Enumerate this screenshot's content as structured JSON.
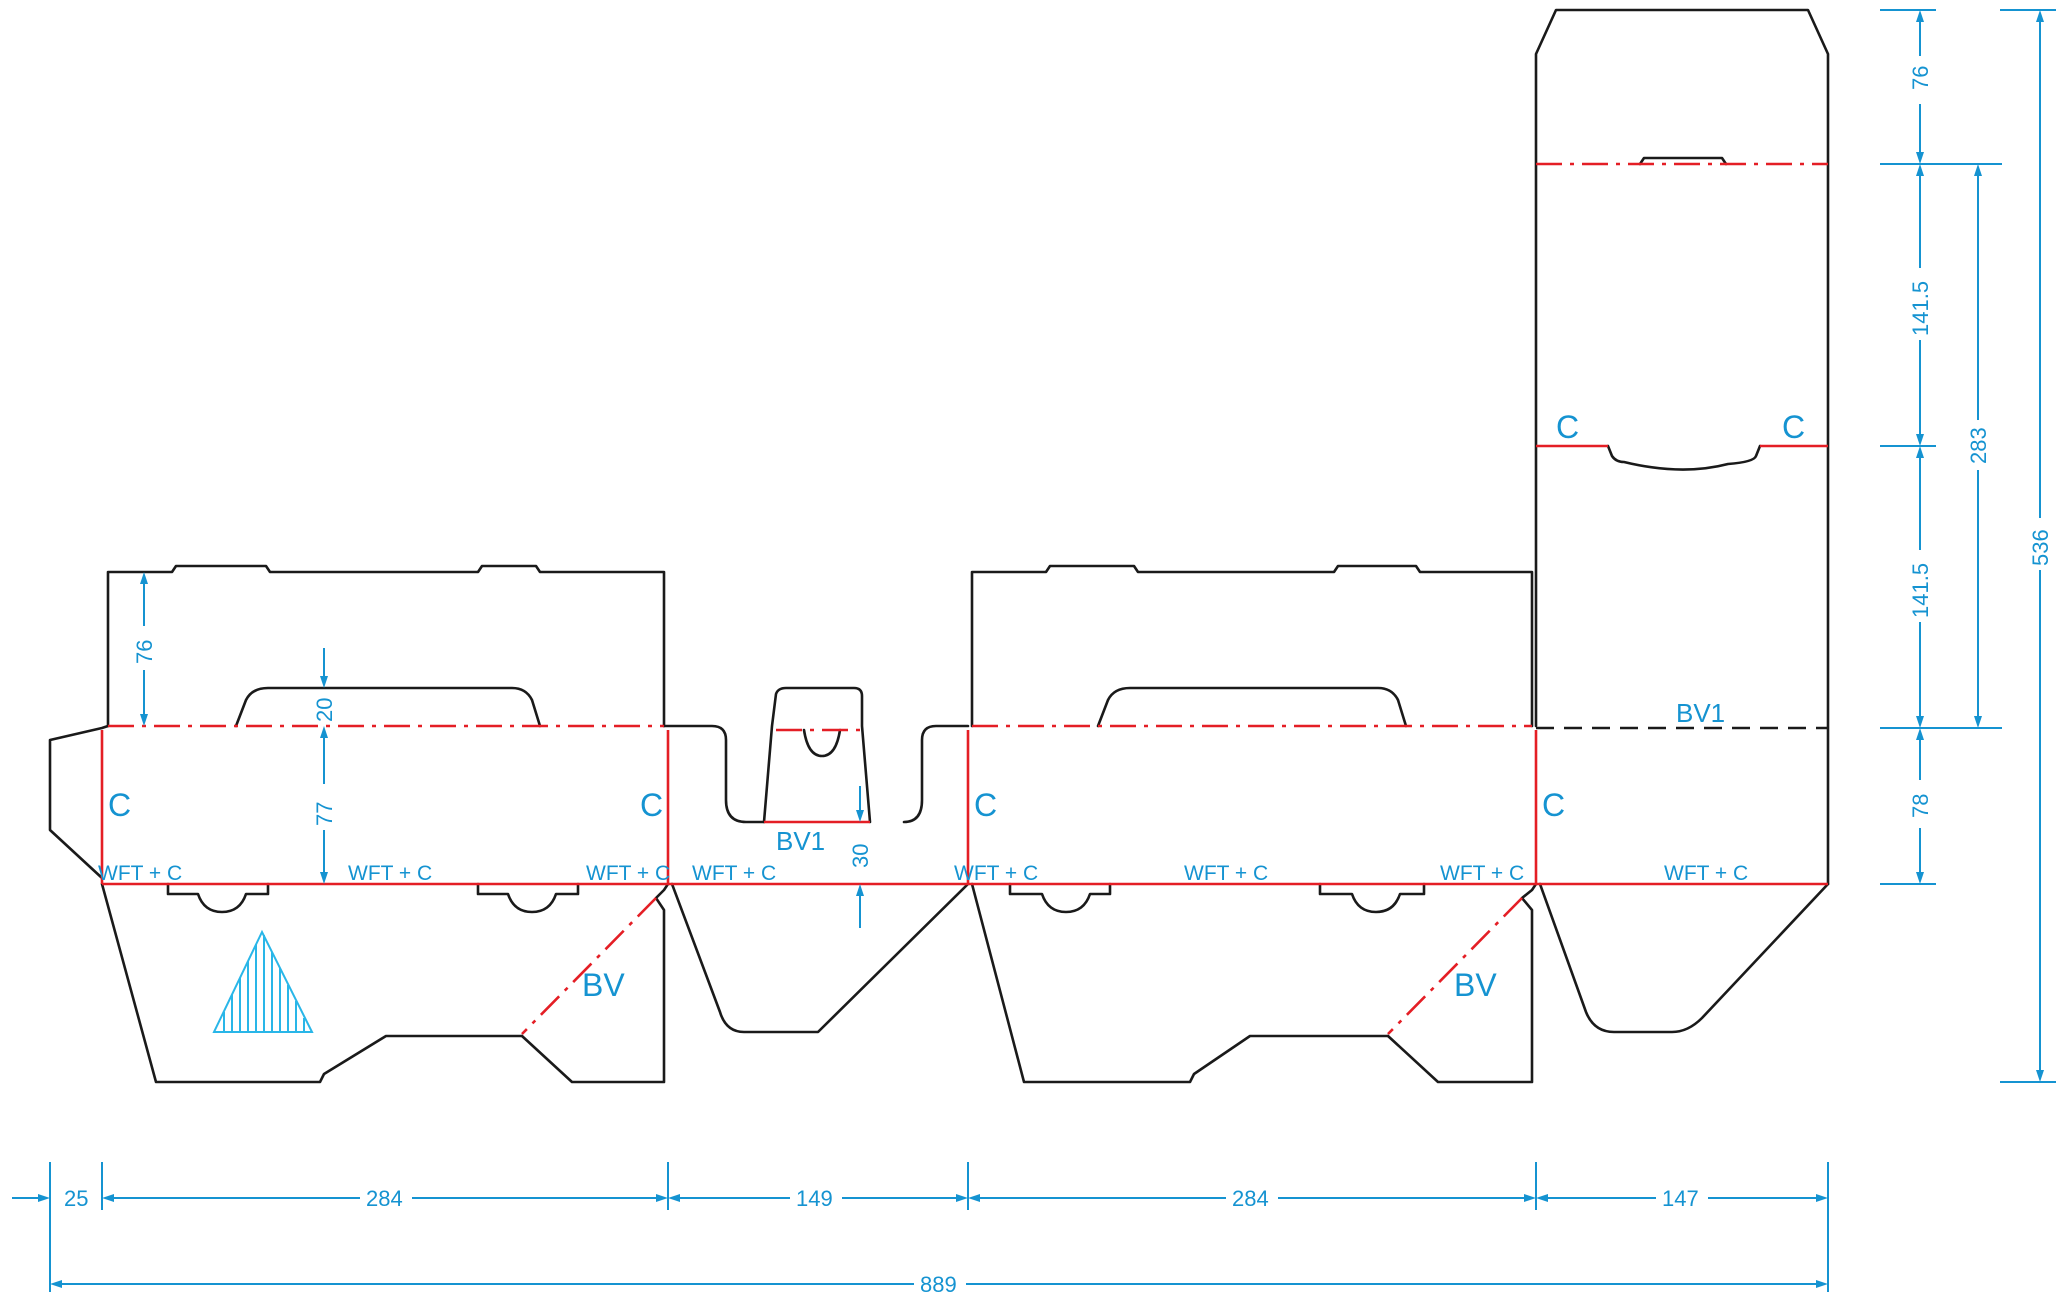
{
  "dimensions": {
    "d25": "25",
    "d284a": "284",
    "d149": "149",
    "d284b": "284",
    "d147": "147",
    "d889": "889",
    "d76_right": "76",
    "d141_5_top": "141.5",
    "d141_5_bottom": "141.5",
    "d78": "78",
    "d283": "283",
    "d536": "536",
    "d76_left": "76",
    "d20": "20",
    "d77": "77",
    "d30": "30"
  },
  "labels": {
    "c": "C",
    "bv": "BV",
    "bv1": "BV1",
    "wft": "WFT + C"
  },
  "colors": {
    "cut": "#1a1a1a",
    "crease": "#e41e25",
    "dimension": "#1593d1",
    "logo": "#29b6e8"
  }
}
